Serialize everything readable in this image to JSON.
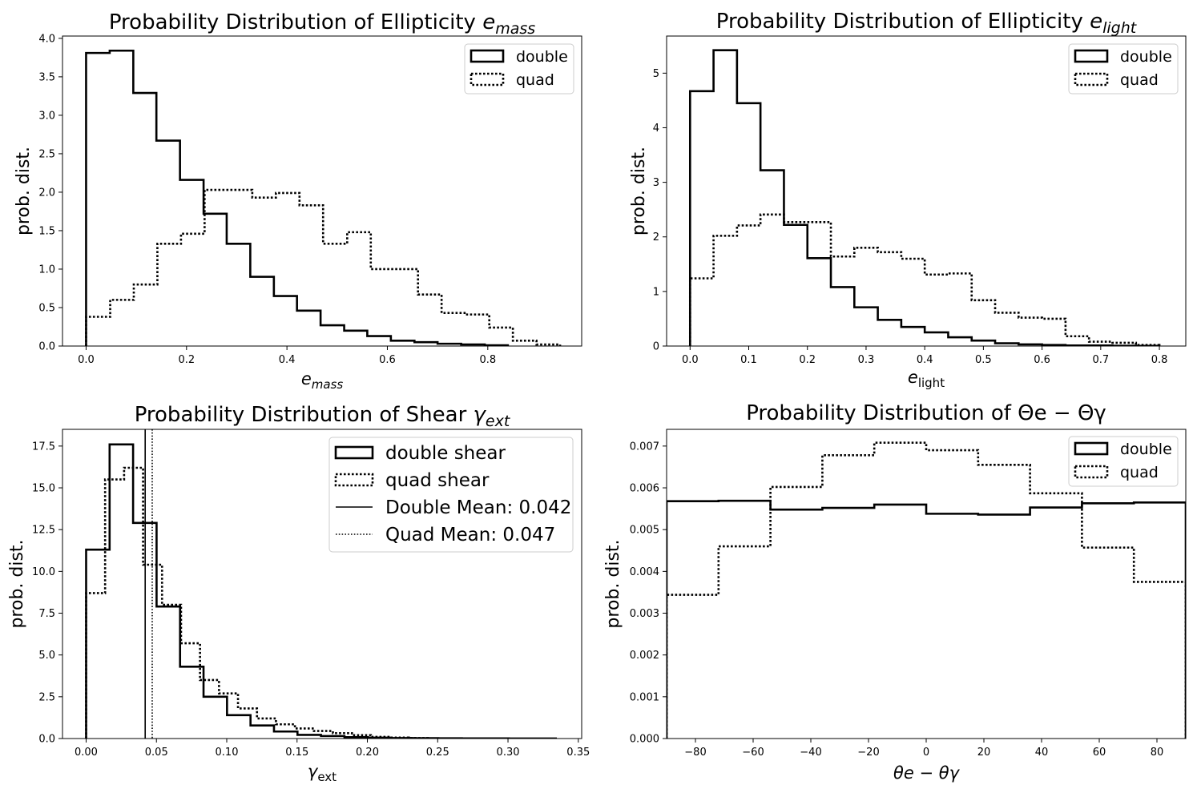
{
  "chart_data": [
    {
      "type": "histogram",
      "title": "Probability Distribution of Ellipticity ",
      "title_symbol": "e",
      "title_sub": "mass",
      "xlabel_symbol": "e",
      "xlabel_sub": "mass",
      "ylabel": "prob. dist.",
      "xlim": [
        -0.047,
        0.987
      ],
      "ylim": [
        0,
        4.03
      ],
      "xticks": [
        0.0,
        0.2,
        0.4,
        0.6,
        0.8
      ],
      "xtick_labels": [
        "0.0",
        "0.2",
        "0.4",
        "0.6",
        "0.8"
      ],
      "yticks": [
        0,
        0.5,
        1,
        1.5,
        2,
        2.5,
        3,
        3.5,
        4
      ],
      "ytick_labels": [
        "0.0",
        "0.5",
        "1.0",
        "1.5",
        "2.0",
        "2.5",
        "3.0",
        "3.5",
        "4.0"
      ],
      "legend": {
        "position": "top-right",
        "entries": [
          "double",
          "quad"
        ]
      },
      "series": [
        {
          "name": "double",
          "style": "solid",
          "edges": [
            0,
            0.047,
            0.094,
            0.14,
            0.187,
            0.234,
            0.28,
            0.327,
            0.374,
            0.42,
            0.467,
            0.514,
            0.56,
            0.607,
            0.654,
            0.7,
            0.747,
            0.794,
            0.84
          ],
          "values": [
            3.81,
            3.84,
            3.29,
            2.67,
            2.16,
            1.72,
            1.33,
            0.9,
            0.65,
            0.46,
            0.27,
            0.2,
            0.13,
            0.07,
            0.05,
            0.03,
            0.02,
            0.01
          ]
        },
        {
          "name": "quad",
          "style": "dotted",
          "edges": [
            0,
            0.048,
            0.095,
            0.142,
            0.189,
            0.236,
            0.283,
            0.331,
            0.378,
            0.425,
            0.472,
            0.52,
            0.567,
            0.614,
            0.661,
            0.708,
            0.756,
            0.803,
            0.85,
            0.897,
            0.944
          ],
          "values": [
            0.38,
            0.6,
            0.8,
            1.33,
            1.46,
            2.03,
            2.03,
            1.93,
            1.99,
            1.83,
            1.33,
            1.48,
            1.0,
            1.0,
            0.67,
            0.43,
            0.41,
            0.24,
            0.07,
            0.02
          ]
        }
      ]
    },
    {
      "type": "histogram",
      "title": "Probability Distribution of Ellipticity ",
      "title_symbol": "e",
      "title_sub": "light",
      "xlabel_symbol": "e",
      "xlabel_sub": "light",
      "ylabel": "prob. dist.",
      "xlim": [
        -0.04,
        0.845
      ],
      "ylim": [
        0,
        5.68
      ],
      "xticks": [
        0,
        0.1,
        0.2,
        0.3,
        0.4,
        0.5,
        0.6,
        0.7,
        0.8
      ],
      "xtick_labels": [
        "0.0",
        "0.1",
        "0.2",
        "0.3",
        "0.4",
        "0.5",
        "0.6",
        "0.7",
        "0.8"
      ],
      "yticks": [
        0,
        1,
        2,
        3,
        4,
        5
      ],
      "ytick_labels": [
        "0",
        "1",
        "2",
        "3",
        "4",
        "5"
      ],
      "legend": {
        "position": "top-right",
        "entries": [
          "double",
          "quad"
        ]
      },
      "series": [
        {
          "name": "double",
          "style": "solid",
          "edges": [
            0,
            0.04,
            0.08,
            0.12,
            0.16,
            0.2,
            0.24,
            0.28,
            0.32,
            0.36,
            0.4,
            0.44,
            0.48,
            0.52,
            0.56,
            0.6,
            0.64,
            0.68,
            0.72,
            0.76,
            0.8
          ],
          "values": [
            4.67,
            5.42,
            4.45,
            3.22,
            2.22,
            1.61,
            1.08,
            0.71,
            0.48,
            0.35,
            0.25,
            0.16,
            0.1,
            0.05,
            0.03,
            0.02,
            0.01,
            0.01,
            0.005,
            0.003
          ]
        },
        {
          "name": "quad",
          "style": "dotted",
          "edges": [
            0,
            0.04,
            0.08,
            0.12,
            0.16,
            0.2,
            0.24,
            0.28,
            0.32,
            0.36,
            0.4,
            0.44,
            0.48,
            0.52,
            0.56,
            0.6,
            0.64,
            0.68,
            0.72,
            0.76,
            0.8
          ],
          "values": [
            1.24,
            2.02,
            2.21,
            2.41,
            2.27,
            2.27,
            1.64,
            1.8,
            1.72,
            1.6,
            1.31,
            1.33,
            0.84,
            0.61,
            0.52,
            0.5,
            0.18,
            0.08,
            0.06,
            0.02
          ]
        }
      ]
    },
    {
      "type": "histogram",
      "title": "Probability Distribution of Shear ",
      "title_symbol": "γ",
      "title_sub": "ext",
      "xlabel_symbol": "γ",
      "xlabel_sub": "ext",
      "ylabel": "prob. dist.",
      "xlim": [
        -0.0168,
        0.3524
      ],
      "ylim": [
        0,
        18.5
      ],
      "xticks": [
        0,
        0.05,
        0.1,
        0.15,
        0.2,
        0.25,
        0.3,
        0.35
      ],
      "xtick_labels": [
        "0.00",
        "0.05",
        "0.10",
        "0.15",
        "0.20",
        "0.25",
        "0.30",
        "0.35"
      ],
      "yticks": [
        0,
        2.5,
        5,
        7.5,
        10,
        12.5,
        15,
        17.5
      ],
      "ytick_labels": [
        "0.0",
        "2.5",
        "5.0",
        "7.5",
        "10.0",
        "12.5",
        "15.0",
        "17.5"
      ],
      "legend": {
        "position": "top-right",
        "entries": [
          "double shear",
          "quad shear",
          "Double Mean: 0.042",
          "Quad Mean: 0.047"
        ]
      },
      "mean_lines": [
        {
          "name": "Double Mean",
          "value": 0.042,
          "style": "solid"
        },
        {
          "name": "Quad Mean",
          "value": 0.047,
          "style": "dotted"
        }
      ],
      "series": [
        {
          "name": "double shear",
          "style": "solid",
          "edges": [
            0,
            0.0167,
            0.0334,
            0.0501,
            0.0668,
            0.0835,
            0.1002,
            0.1169,
            0.1336,
            0.1503,
            0.167,
            0.1837,
            0.2004,
            0.2171,
            0.2338,
            0.2505,
            0.2672,
            0.2839,
            0.3006,
            0.3173,
            0.334
          ],
          "values": [
            11.3,
            17.6,
            12.9,
            7.9,
            4.3,
            2.5,
            1.4,
            0.78,
            0.42,
            0.22,
            0.15,
            0.08,
            0.05,
            0.03,
            0.02,
            0.015,
            0.01,
            0.008,
            0.005,
            0.003
          ]
        },
        {
          "name": "quad shear",
          "style": "dotted",
          "edges": [
            0,
            0.0135,
            0.027,
            0.0405,
            0.054,
            0.0675,
            0.081,
            0.0945,
            0.108,
            0.1215,
            0.135,
            0.1485,
            0.162,
            0.1755,
            0.189,
            0.2025,
            0.216,
            0.2295,
            0.243,
            0.2565
          ],
          "values": [
            8.7,
            15.5,
            16.2,
            10.4,
            8.0,
            5.7,
            3.5,
            2.7,
            1.8,
            1.2,
            0.85,
            0.6,
            0.45,
            0.32,
            0.2,
            0.1,
            0.06,
            0.03,
            0.01
          ]
        }
      ]
    },
    {
      "type": "histogram",
      "title": "Probability Distribution of ",
      "title_math": "Θe − Θγ",
      "xlabel_math": "θe − θγ",
      "ylabel": "prob. dist.",
      "xlim": [
        -90,
        90
      ],
      "ylim": [
        0,
        0.0074
      ],
      "xticks": [
        -80,
        -60,
        -40,
        -20,
        0,
        20,
        40,
        60,
        80
      ],
      "xtick_labels": [
        "−80",
        "−60",
        "−40",
        "−20",
        "0",
        "20",
        "40",
        "60",
        "80"
      ],
      "yticks": [
        0,
        0.001,
        0.002,
        0.003,
        0.004,
        0.005,
        0.006,
        0.007
      ],
      "ytick_labels": [
        "0.000",
        "0.001",
        "0.002",
        "0.003",
        "0.004",
        "0.005",
        "0.006",
        "0.007"
      ],
      "legend": {
        "position": "top-right",
        "entries": [
          "double",
          "quad"
        ]
      },
      "series": [
        {
          "name": "double",
          "style": "solid",
          "edges": [
            -90,
            -72,
            -54,
            -36,
            -18,
            0,
            18,
            36,
            54,
            72,
            90
          ],
          "values": [
            0.00568,
            0.00569,
            0.00548,
            0.00552,
            0.0056,
            0.00538,
            0.00536,
            0.00553,
            0.00563,
            0.00565
          ]
        },
        {
          "name": "quad",
          "style": "dotted",
          "edges": [
            -90,
            -72,
            -54,
            -36,
            -18,
            0,
            18,
            36,
            54,
            72,
            90
          ],
          "values": [
            0.00344,
            0.0046,
            0.00602,
            0.00678,
            0.00708,
            0.0069,
            0.00655,
            0.00587,
            0.00457,
            0.00375
          ]
        }
      ]
    }
  ]
}
